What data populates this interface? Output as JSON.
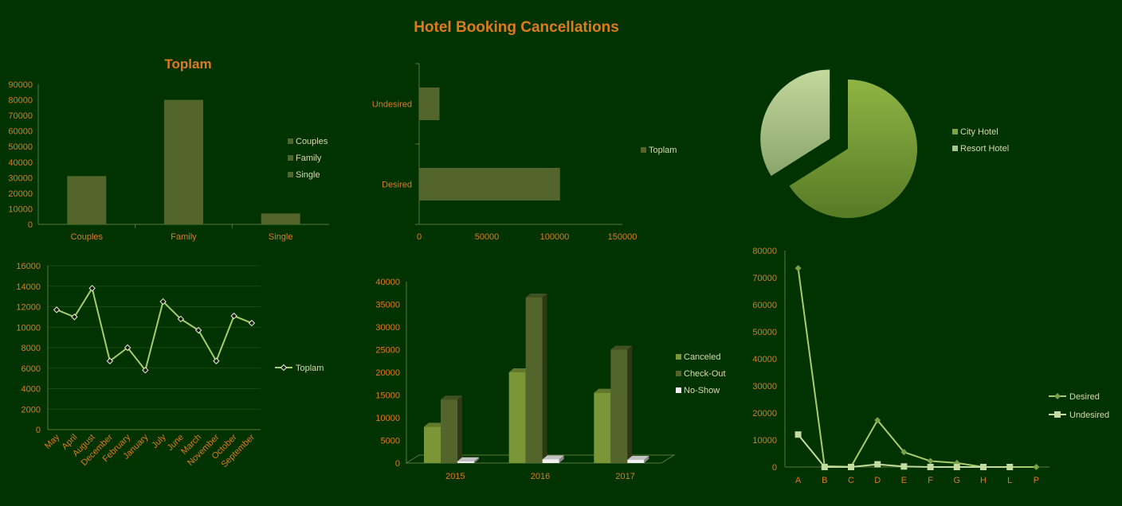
{
  "dashboard": {
    "title": "Hotel Booking Cancellations"
  },
  "colors": {
    "background": "#003300",
    "text": "#e07a1f",
    "legend_text": "#d9d9b0",
    "bar": "#53652a",
    "bar_light": "#7a9636",
    "line": "#a9cc6b",
    "line_light": "#c5dca0",
    "pie_city": "#7fa53c",
    "pie_resort": "#a8c58a",
    "noshow": "#f2f2f2"
  },
  "chart_data": [
    {
      "id": "customer-type",
      "type": "bar",
      "title": "Toplam",
      "categories": [
        "Couples",
        "Family",
        "Single"
      ],
      "values": [
        31000,
        80000,
        7000
      ],
      "ylim": [
        0,
        90000
      ],
      "yticks": [
        "0",
        "10000",
        "20000",
        "30000",
        "40000",
        "50000",
        "60000",
        "70000",
        "80000",
        "90000"
      ],
      "legend": [
        "Couples",
        "Family",
        "Single"
      ],
      "legend_position": "right",
      "grid": false
    },
    {
      "id": "desired-undesired",
      "type": "bar",
      "orientation": "horizontal",
      "categories": [
        "Undesired",
        "Desired"
      ],
      "values": [
        15000,
        104000
      ],
      "xlim": [
        0,
        150000
      ],
      "xticks": [
        "0",
        "50000",
        "100000",
        "150000"
      ],
      "legend": [
        "Toplam"
      ],
      "legend_position": "right",
      "grid": false
    },
    {
      "id": "hotel-type",
      "type": "pie",
      "labels": [
        "City Hotel",
        "Resort Hotel"
      ],
      "values": [
        66,
        34
      ],
      "exploded": "Resort Hotel",
      "legend": [
        "City Hotel",
        "Resort Hotel"
      ],
      "legend_position": "right"
    },
    {
      "id": "monthly",
      "type": "line",
      "categories": [
        "May",
        "April",
        "August",
        "December",
        "February",
        "January",
        "July",
        "June",
        "March",
        "November",
        "October",
        "September"
      ],
      "values": [
        11700,
        11000,
        13800,
        6700,
        8000,
        5800,
        12500,
        10800,
        9700,
        6700,
        11100,
        10400
      ],
      "ylim": [
        0,
        16000
      ],
      "yticks": [
        "0",
        "2000",
        "4000",
        "6000",
        "8000",
        "10000",
        "12000",
        "14000",
        "16000"
      ],
      "legend": [
        "Toplam"
      ],
      "legend_position": "right",
      "grid": true
    },
    {
      "id": "yearly-status",
      "type": "bar",
      "style": "3d",
      "categories": [
        "2015",
        "2016",
        "2017"
      ],
      "series": [
        {
          "name": "Canceled",
          "values": [
            8000,
            20000,
            15500
          ]
        },
        {
          "name": "Check-Out",
          "values": [
            14000,
            36500,
            25000
          ]
        },
        {
          "name": "No-Show",
          "values": [
            400,
            800,
            700
          ]
        }
      ],
      "ylim": [
        0,
        40000
      ],
      "yticks": [
        "0",
        "5000",
        "10000",
        "15000",
        "20000",
        "25000",
        "30000",
        "35000",
        "40000"
      ],
      "legend_position": "right",
      "grid": false
    },
    {
      "id": "room-type",
      "type": "line",
      "categories": [
        "A",
        "B",
        "C",
        "D",
        "E",
        "F",
        "G",
        "H",
        "L",
        "P"
      ],
      "series": [
        {
          "name": "Desired",
          "values": [
            73500,
            300,
            100,
            17300,
            5500,
            2200,
            1500,
            0,
            0,
            0
          ]
        },
        {
          "name": "Undesired",
          "values": [
            12000,
            0,
            0,
            1000,
            200,
            0,
            0,
            0,
            0,
            null
          ]
        }
      ],
      "ylim": [
        0,
        80000
      ],
      "yticks": [
        "0",
        "10000",
        "20000",
        "30000",
        "40000",
        "50000",
        "60000",
        "70000",
        "80000"
      ],
      "legend_position": "right",
      "grid": false
    }
  ]
}
